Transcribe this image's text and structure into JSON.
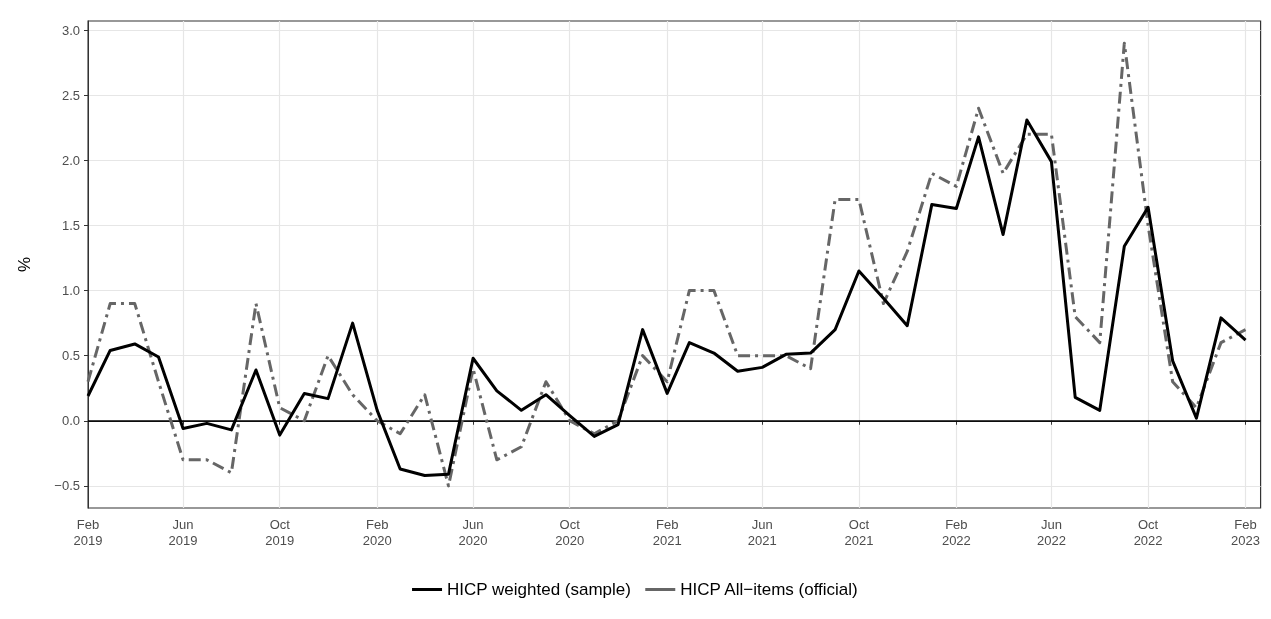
{
  "chart_data": {
    "type": "line",
    "ylabel": "%",
    "x": [
      "2019-02",
      "2019-03",
      "2019-04",
      "2019-05",
      "2019-06",
      "2019-07",
      "2019-08",
      "2019-09",
      "2019-10",
      "2019-11",
      "2019-12",
      "2020-01",
      "2020-02",
      "2020-03",
      "2020-04",
      "2020-05",
      "2020-06",
      "2020-07",
      "2020-08",
      "2020-09",
      "2020-10",
      "2020-11",
      "2020-12",
      "2021-01",
      "2021-02",
      "2021-03",
      "2021-04",
      "2021-05",
      "2021-06",
      "2021-07",
      "2021-08",
      "2021-09",
      "2021-10",
      "2021-11",
      "2021-12",
      "2022-01",
      "2022-02",
      "2022-03",
      "2022-04",
      "2022-05",
      "2022-06",
      "2022-07",
      "2022-08",
      "2022-09",
      "2022-10",
      "2022-11",
      "2022-12",
      "2023-01",
      "2023-02"
    ],
    "series": [
      {
        "name": "HICP weighted (sample)",
        "color": "#000000",
        "line_style": "solid",
        "values": [
          0.19,
          0.54,
          0.59,
          0.49,
          -0.06,
          -0.02,
          -0.07,
          0.39,
          -0.11,
          0.21,
          0.17,
          0.75,
          0.08,
          -0.37,
          -0.42,
          -0.41,
          0.48,
          0.23,
          0.08,
          0.2,
          0.04,
          -0.12,
          -0.03,
          0.7,
          0.21,
          0.6,
          0.52,
          0.38,
          0.41,
          0.51,
          0.52,
          0.7,
          1.15,
          0.94,
          0.73,
          1.66,
          1.63,
          2.18,
          1.43,
          2.31,
          1.99,
          0.18,
          0.08,
          1.34,
          1.64,
          0.46,
          0.02,
          0.79,
          0.62
        ]
      },
      {
        "name": "HICP All−items (official)",
        "color": "#666666",
        "line_style": "dashed",
        "values": [
          0.3,
          0.9,
          0.9,
          0.3,
          -0.3,
          -0.3,
          -0.4,
          0.9,
          0.1,
          0.0,
          0.5,
          0.2,
          0.0,
          -0.1,
          0.2,
          -0.5,
          0.4,
          -0.3,
          -0.2,
          0.3,
          0.0,
          -0.1,
          0.0,
          0.5,
          0.3,
          1.0,
          1.0,
          0.5,
          0.5,
          0.5,
          0.4,
          1.7,
          1.7,
          0.9,
          1.3,
          1.9,
          1.8,
          2.4,
          1.9,
          2.2,
          2.2,
          0.8,
          0.6,
          2.9,
          1.5,
          0.3,
          0.1,
          0.6,
          0.7
        ]
      }
    ],
    "xlim": [
      "2019-02",
      "2023-02-20"
    ],
    "xticks": [
      {
        "value": "2019-02",
        "label": "Feb 2019"
      },
      {
        "value": "2019-06",
        "label": "Jun 2019"
      },
      {
        "value": "2019-10",
        "label": "Oct 2019"
      },
      {
        "value": "2020-02",
        "label": "Feb 2020"
      },
      {
        "value": "2020-06",
        "label": "Jun 2020"
      },
      {
        "value": "2020-10",
        "label": "Oct 2020"
      },
      {
        "value": "2021-02",
        "label": "Feb 2021"
      },
      {
        "value": "2021-06",
        "label": "Jun 2021"
      },
      {
        "value": "2021-10",
        "label": "Oct 2021"
      },
      {
        "value": "2022-02",
        "label": "Feb 2022"
      },
      {
        "value": "2022-06",
        "label": "Jun 2022"
      },
      {
        "value": "2022-10",
        "label": "Oct 2022"
      },
      {
        "value": "2023-02",
        "label": "Feb 2023"
      }
    ],
    "ylim": [
      -0.67,
      3.07
    ],
    "yticks": [
      {
        "value": -0.5,
        "label": "−0.5"
      },
      {
        "value": 0,
        "label": "0.0"
      },
      {
        "value": 0.5,
        "label": "0.5"
      },
      {
        "value": 1,
        "label": "1.0"
      },
      {
        "value": 1.5,
        "label": "1.5"
      },
      {
        "value": 2,
        "label": "2.0"
      },
      {
        "value": 2.5,
        "label": "2.5"
      },
      {
        "value": 3,
        "label": "3.0"
      }
    ],
    "ref_lines": [
      {
        "axis": "y",
        "value": 0,
        "color": "#000000"
      }
    ],
    "grid": true,
    "legend": "bottom",
    "marker": "none"
  }
}
